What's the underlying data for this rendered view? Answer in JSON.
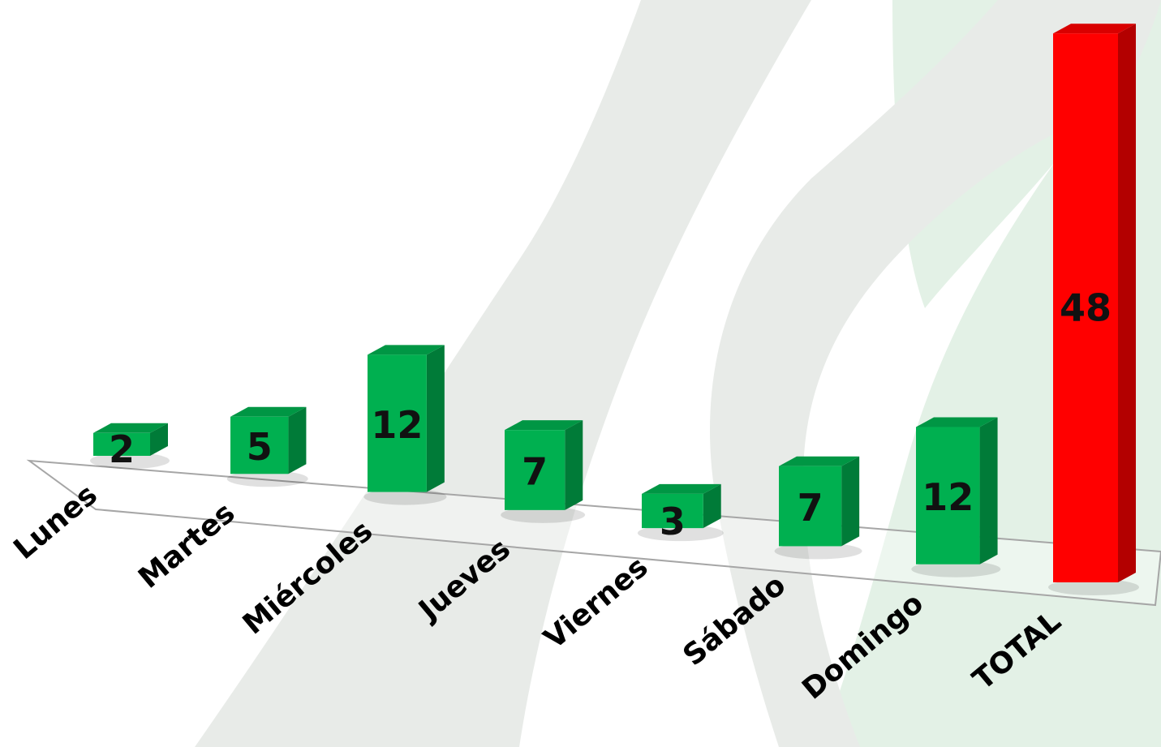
{
  "chart_data": {
    "type": "bar",
    "style": "3d-perspective",
    "categories": [
      "Lunes",
      "Martes",
      "Miércoles",
      "Jueves",
      "Viernes",
      "Sábado",
      "Domingo",
      "TOTAL"
    ],
    "values": [
      2,
      5,
      12,
      7,
      3,
      7,
      12,
      48
    ],
    "data_labels": [
      "2",
      "5",
      "12",
      "7",
      "3",
      "7",
      "12",
      "48"
    ],
    "colors": {
      "default_bar": "#00b050",
      "highlight_bar": "#ff0000",
      "highlight_category": "TOTAL"
    },
    "title": "",
    "xlabel": "",
    "ylabel": "",
    "grid": false,
    "legend": "none"
  },
  "background": {
    "watermark": "large pale grey and green logo shapes",
    "colors": [
      "#e8ebe8",
      "#e3f1e6"
    ]
  }
}
